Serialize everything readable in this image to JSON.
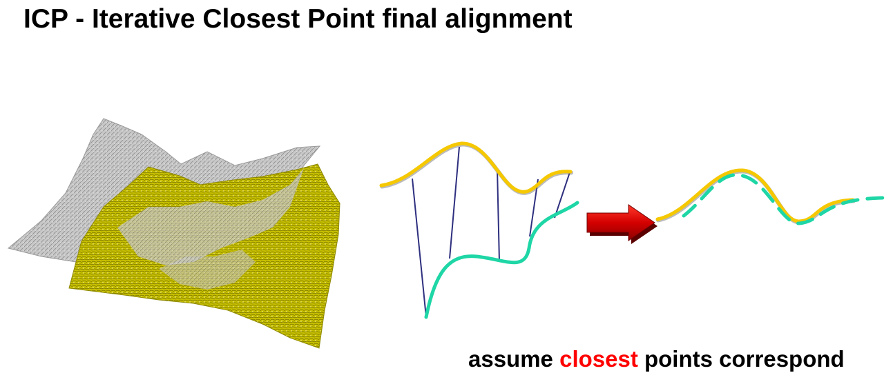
{
  "title": "ICP - Iterative Closest Point final alignment",
  "caption": {
    "prefix": "assume ",
    "highlight": "closest",
    "suffix": " points correspond"
  },
  "colors": {
    "model_curve": "#f5c800",
    "data_curve": "#1ed6a6",
    "correspondence_line": "#2e2f7f",
    "terrain_gray": "#bdbdbd",
    "terrain_yellow": "#c9c200",
    "arrow": "#d40000",
    "highlight": "#ff0000"
  },
  "icons": {
    "terrain": "terrain-mesh-icon",
    "arrow": "right-arrow-icon"
  }
}
